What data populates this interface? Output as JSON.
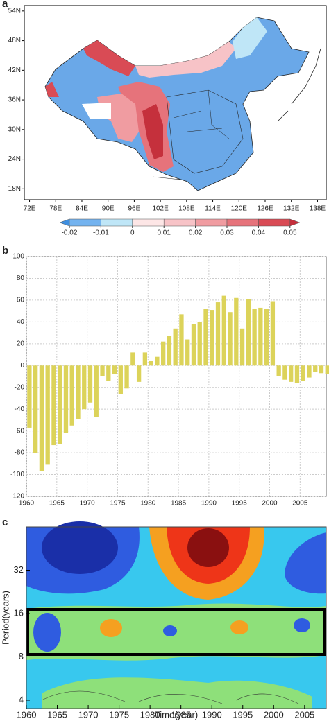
{
  "chart_data": [
    {
      "type": "map",
      "label": "a",
      "xlim": [
        70.8,
        140
      ],
      "ylim": [
        15.8,
        55.1
      ],
      "xticks": [
        {
          "value": 72,
          "label": "72E"
        },
        {
          "value": 78,
          "label": "78E"
        },
        {
          "value": 84,
          "label": "84E"
        },
        {
          "value": 90,
          "label": "90E"
        },
        {
          "value": 96,
          "label": "96E"
        },
        {
          "value": 102,
          "label": "102E"
        },
        {
          "value": 108,
          "label": "108E"
        },
        {
          "value": 114,
          "label": "114E"
        },
        {
          "value": 120,
          "label": "120E"
        },
        {
          "value": 126,
          "label": "126E"
        },
        {
          "value": 132,
          "label": "132E"
        },
        {
          "value": 138,
          "label": "138E"
        }
      ],
      "yticks": [
        {
          "value": 18,
          "label": "18N"
        },
        {
          "value": 24,
          "label": "24N"
        },
        {
          "value": 30,
          "label": "30N"
        },
        {
          "value": 36,
          "label": "36N"
        },
        {
          "value": 42,
          "label": "42N"
        },
        {
          "value": 48,
          "label": "48N"
        },
        {
          "value": 54,
          "label": "54N"
        }
      ],
      "colorbar": {
        "ticks": [
          -0.02,
          -0.01,
          0,
          0.01,
          0.02,
          0.03,
          0.04,
          0.05
        ],
        "colors": [
          "#3f8fe0",
          "#74b3ef",
          "#bfe6f7",
          "#fde6e6",
          "#f7c3c7",
          "#f09ca1",
          "#e6737b",
          "#d94b55",
          "#c5303c"
        ]
      }
    },
    {
      "type": "bar",
      "label": "b",
      "color": "#dcd35a",
      "grid": true,
      "x": [
        1960,
        1961,
        1962,
        1963,
        1964,
        1965,
        1966,
        1967,
        1968,
        1969,
        1970,
        1971,
        1972,
        1973,
        1974,
        1975,
        1976,
        1977,
        1978,
        1979,
        1980,
        1981,
        1982,
        1983,
        1984,
        1985,
        1986,
        1987,
        1988,
        1989,
        1990,
        1991,
        1992,
        1993,
        1994,
        1995,
        1996,
        1997,
        1998,
        1999,
        2000,
        2001,
        2002,
        2003,
        2004,
        2005,
        2006,
        2007,
        2008,
        2009
      ],
      "values": [
        -57,
        -80,
        -97,
        -91,
        -73,
        -72,
        -62,
        -55,
        -49,
        -40,
        -34,
        -47,
        -10,
        -14,
        -8,
        -26,
        -21,
        12,
        -15,
        12,
        4,
        8,
        22,
        27,
        34,
        47,
        24,
        38,
        40,
        52,
        51,
        58,
        64,
        49,
        62,
        34,
        61,
        52,
        53,
        52,
        59,
        -10,
        -13,
        -15,
        -16,
        -14,
        -11,
        -6,
        -7,
        -8
      ],
      "xlim": [
        1960,
        2009.3
      ],
      "xticks": [
        1960,
        1965,
        1970,
        1975,
        1980,
        1985,
        1990,
        1995,
        2000,
        2005
      ],
      "ylim": [
        -120,
        100
      ],
      "yticks": [
        -120,
        -100,
        -80,
        -60,
        -40,
        -20,
        0,
        20,
        40,
        60,
        80,
        100
      ]
    },
    {
      "type": "wavelet",
      "label": "c",
      "xlabel": "Time(year)",
      "ylabel": "Period(years)",
      "log_scale": true,
      "xlim": [
        1960,
        2008.5
      ],
      "xticks": [
        1960,
        1965,
        1970,
        1975,
        1980,
        1985,
        1990,
        1995,
        2000,
        2005
      ],
      "ylim": [
        3.5,
        64
      ],
      "yticks": [
        4,
        8,
        16,
        32
      ]
    }
  ]
}
